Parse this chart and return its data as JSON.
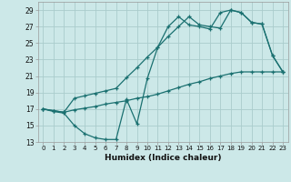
{
  "xlabel": "Humidex (Indice chaleur)",
  "bg_color": "#cce8e8",
  "grid_color": "#aacccc",
  "line_color": "#1a7070",
  "xlim": [
    -0.5,
    23.5
  ],
  "ylim": [
    13,
    30
  ],
  "yticks": [
    13,
    15,
    17,
    19,
    21,
    23,
    25,
    27,
    29
  ],
  "xticks": [
    0,
    1,
    2,
    3,
    4,
    5,
    6,
    7,
    8,
    9,
    10,
    11,
    12,
    13,
    14,
    15,
    16,
    17,
    18,
    19,
    20,
    21,
    22,
    23
  ],
  "line1_x": [
    0,
    1,
    2,
    3,
    4,
    5,
    6,
    7,
    8,
    9,
    10,
    11,
    12,
    13,
    14,
    15,
    16,
    17,
    18,
    19,
    20,
    21,
    22,
    23
  ],
  "line1_y": [
    17.0,
    16.7,
    16.5,
    15.0,
    14.0,
    13.5,
    13.3,
    13.3,
    18.2,
    15.2,
    20.7,
    24.5,
    27.0,
    28.2,
    27.2,
    27.0,
    26.7,
    28.7,
    29.0,
    28.7,
    27.5,
    27.3,
    23.5,
    21.5
  ],
  "line2_x": [
    0,
    1,
    2,
    3,
    4,
    5,
    6,
    7,
    8,
    9,
    10,
    11,
    12,
    13,
    14,
    15,
    16,
    17,
    18,
    19,
    20,
    21,
    22,
    23
  ],
  "line2_y": [
    17.0,
    16.8,
    16.6,
    16.9,
    17.1,
    17.3,
    17.6,
    17.8,
    18.0,
    18.3,
    18.5,
    18.8,
    19.2,
    19.6,
    20.0,
    20.3,
    20.7,
    21.0,
    21.3,
    21.5,
    21.5,
    21.5,
    21.5,
    21.5
  ],
  "line3_x": [
    0,
    1,
    2,
    3,
    4,
    5,
    6,
    7,
    8,
    9,
    10,
    11,
    12,
    13,
    14,
    15,
    16,
    17,
    18,
    19,
    20,
    21,
    22,
    23
  ],
  "line3_y": [
    17.0,
    16.8,
    16.6,
    18.3,
    18.6,
    18.9,
    19.2,
    19.5,
    20.8,
    22.0,
    23.3,
    24.5,
    25.8,
    27.0,
    28.2,
    27.2,
    27.0,
    26.8,
    29.0,
    28.7,
    27.5,
    27.3,
    23.5,
    21.5
  ]
}
